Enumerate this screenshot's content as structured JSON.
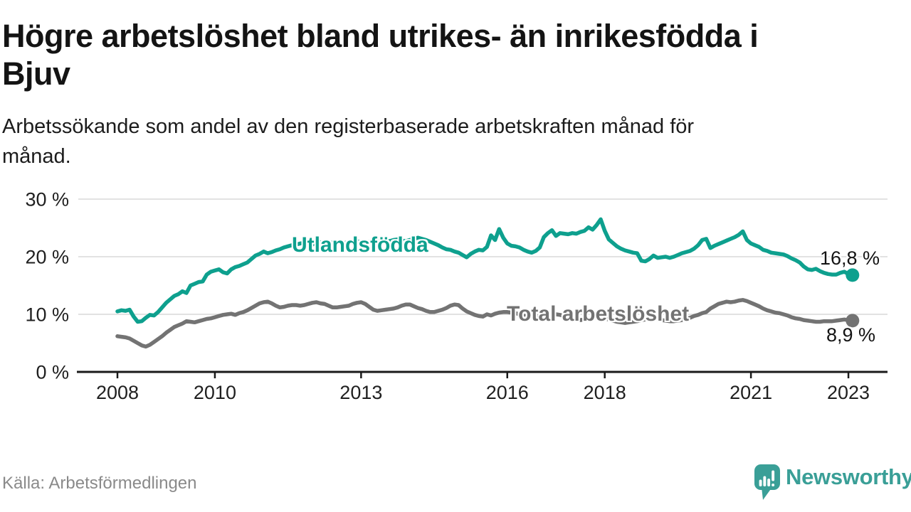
{
  "header": {
    "title_lines": [
      "Högre arbetslöshet bland utrikes- än inrikesfödda i",
      "Bjuv"
    ],
    "subtitle_lines": [
      "Arbetssökande som andel av den registerbaserade arbetskraften månad för",
      "månad."
    ]
  },
  "footer": {
    "source": "Källa: Arbetsförmedlingen",
    "brand_name": "Newsworthy",
    "brand_icon": "newsworthy-speech-bubble-bar-chart-icon"
  },
  "colors": {
    "foreign_born_line": "#0ea08e",
    "total_line": "#737373",
    "grid": "#d9d9d9",
    "axis": "#1a1a1a",
    "tick_text": "#1f1f1f",
    "annotation_text": "#141414",
    "muted_text": "#8a8a8a",
    "brand": "#3a9f97"
  },
  "chart_data": {
    "type": "line",
    "x_unit": "month",
    "x_range": [
      "2008-01",
      "2023-02"
    ],
    "ylim": [
      0,
      32
    ],
    "grid": true,
    "legend_position": "inline-labels",
    "y_ticks": [
      {
        "value": 30,
        "label": "30 %"
      },
      {
        "value": 20,
        "label": "20 %"
      },
      {
        "value": 10,
        "label": "10 %"
      },
      {
        "value": 0,
        "label": "0 %"
      }
    ],
    "x_ticks": [
      {
        "year": 2008,
        "label": "2008"
      },
      {
        "year": 2010,
        "label": "2010"
      },
      {
        "year": 2013,
        "label": "2013"
      },
      {
        "year": 2016,
        "label": "2016"
      },
      {
        "year": 2018,
        "label": "2018"
      },
      {
        "year": 2021,
        "label": "2021"
      },
      {
        "year": 2023,
        "label": "2023"
      }
    ],
    "series": [
      {
        "name": "Utlandsfödda",
        "color": "#0ea08e",
        "end_label": "16,8 %",
        "end_value": 16.8,
        "values": [
          10.5,
          10.7,
          10.6,
          10.8,
          9.6,
          8.7,
          8.8,
          9.4,
          9.9,
          9.8,
          10.4,
          11.2,
          12.0,
          12.6,
          13.2,
          13.5,
          14.0,
          13.7,
          15.0,
          15.3,
          15.6,
          15.7,
          16.9,
          17.4,
          17.6,
          17.8,
          17.3,
          17.1,
          17.8,
          18.2,
          18.4,
          18.7,
          19.0,
          19.6,
          20.2,
          20.5,
          20.9,
          20.6,
          20.8,
          21.1,
          21.3,
          21.6,
          21.8,
          22.0,
          22.1,
          22.3,
          22.4,
          22.5,
          22.1,
          22.7,
          22.5,
          22.4,
          22.6,
          22.4,
          22.5,
          22.3,
          22.4,
          22.6,
          22.5,
          22.7,
          22.5,
          22.4,
          22.6,
          22.5,
          22.7,
          22.6,
          22.8,
          22.7,
          22.9,
          23.0,
          22.8,
          22.7,
          22.9,
          23.1,
          23.3,
          23.1,
          22.9,
          22.6,
          22.3,
          22.0,
          21.6,
          21.3,
          21.2,
          20.9,
          20.7,
          20.3,
          19.9,
          20.5,
          20.9,
          21.2,
          21.1,
          21.7,
          23.7,
          22.9,
          24.8,
          23.3,
          22.3,
          21.9,
          21.8,
          21.6,
          21.2,
          20.9,
          20.7,
          21.0,
          21.6,
          23.4,
          24.1,
          24.6,
          23.6,
          24.1,
          24.0,
          23.9,
          24.1,
          24.0,
          24.3,
          24.5,
          25.1,
          24.7,
          25.5,
          26.5,
          24.5,
          23.0,
          22.4,
          21.8,
          21.4,
          21.1,
          20.9,
          20.7,
          20.6,
          19.3,
          19.2,
          19.6,
          20.2,
          19.8,
          19.9,
          20.0,
          19.8,
          20.0,
          20.3,
          20.6,
          20.8,
          21.0,
          21.4,
          22.0,
          22.9,
          23.1,
          21.5,
          21.9,
          22.2,
          22.5,
          22.8,
          23.1,
          23.4,
          23.8,
          24.4,
          22.9,
          22.3,
          22.0,
          21.7,
          21.2,
          21.0,
          20.7,
          20.6,
          20.5,
          20.4,
          20.1,
          19.7,
          19.4,
          19.0,
          18.3,
          17.8,
          17.7,
          17.9,
          17.5,
          17.2,
          17.0,
          16.9,
          16.9,
          17.2,
          17.4,
          17.0,
          16.8
        ]
      },
      {
        "name": "Total arbetslöshet",
        "color": "#737373",
        "end_label": "8,9 %",
        "end_value": 8.9,
        "values": [
          6.2,
          6.1,
          6.0,
          5.8,
          5.4,
          5.0,
          4.6,
          4.4,
          4.7,
          5.2,
          5.7,
          6.2,
          6.8,
          7.3,
          7.8,
          8.1,
          8.4,
          8.8,
          8.7,
          8.6,
          8.8,
          9.0,
          9.2,
          9.3,
          9.5,
          9.7,
          9.9,
          10.0,
          10.1,
          9.9,
          10.2,
          10.4,
          10.7,
          11.1,
          11.5,
          11.9,
          12.1,
          12.2,
          11.9,
          11.5,
          11.2,
          11.3,
          11.5,
          11.6,
          11.6,
          11.5,
          11.6,
          11.8,
          12.0,
          12.1,
          11.9,
          11.8,
          11.5,
          11.2,
          11.2,
          11.3,
          11.4,
          11.5,
          11.8,
          12.0,
          12.1,
          11.8,
          11.3,
          10.8,
          10.6,
          10.7,
          10.8,
          10.9,
          11.0,
          11.2,
          11.5,
          11.7,
          11.7,
          11.4,
          11.1,
          10.9,
          10.6,
          10.4,
          10.4,
          10.6,
          10.8,
          11.1,
          11.5,
          11.7,
          11.6,
          11.0,
          10.5,
          10.2,
          9.9,
          9.7,
          9.6,
          10.0,
          9.8,
          10.1,
          10.3,
          10.4,
          10.4,
          10.3,
          10.2,
          10.0,
          9.8,
          9.6,
          9.5,
          9.6,
          9.7,
          9.9,
          10.0,
          10.1,
          10.0,
          9.9,
          9.7,
          9.5,
          9.3,
          9.1,
          9.0,
          9.1,
          9.2,
          9.3,
          9.4,
          9.4,
          9.3,
          9.1,
          8.9,
          8.7,
          8.6,
          8.5,
          8.6,
          8.7,
          8.8,
          9.0,
          9.1,
          9.2,
          9.3,
          9.2,
          9.0,
          8.9,
          8.8,
          8.8,
          8.9,
          9.0,
          9.2,
          9.4,
          9.7,
          9.9,
          10.2,
          10.4,
          11.0,
          11.4,
          11.8,
          12.0,
          12.2,
          12.1,
          12.2,
          12.4,
          12.5,
          12.3,
          12.0,
          11.7,
          11.4,
          11.0,
          10.7,
          10.5,
          10.3,
          10.2,
          10.0,
          9.8,
          9.5,
          9.3,
          9.2,
          9.0,
          8.9,
          8.8,
          8.7,
          8.7,
          8.8,
          8.8,
          8.8,
          8.9,
          9.0,
          9.1,
          9.0,
          8.9
        ]
      }
    ]
  }
}
